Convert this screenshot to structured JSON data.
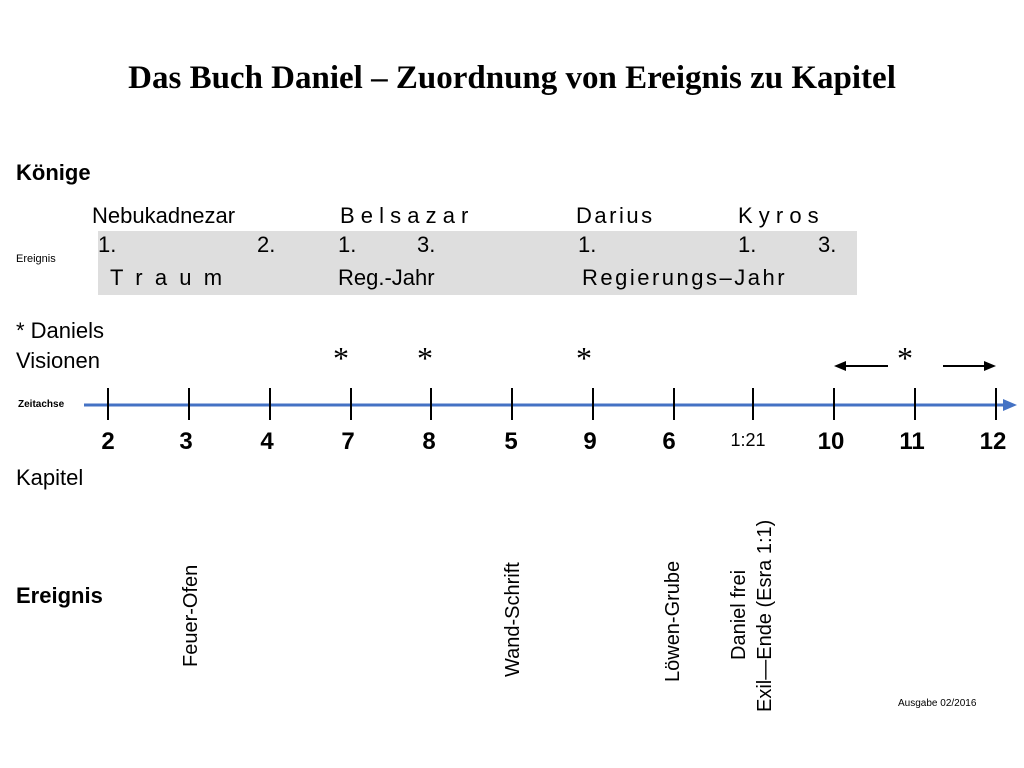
{
  "title": "Das Buch Daniel – Zuordnung von Ereignis zu Kapitel",
  "sections": {
    "koenige": "Könige",
    "ereignis_small": "Ereignis",
    "visions": "* Daniels",
    "visions2": "Visionen",
    "zeitachse": "Zeitachse",
    "kapitel": "Kapitel",
    "ereignis_bold": "Ereignis"
  },
  "kings": [
    {
      "name": "Nebukadnezar",
      "style": "normal"
    },
    {
      "name": "B e l s a z a r",
      "style": "spaced"
    },
    {
      "name": "Darius",
      "style": "normal"
    },
    {
      "name": "K y r o s",
      "style": "spaced"
    }
  ],
  "event_row1": [
    "1.",
    "2.",
    "1.",
    "3.",
    "1.",
    "1.",
    "3."
  ],
  "event_row2": [
    "T  r  a  u  m",
    "Reg.-Jahr",
    "Regierungs–Jahr"
  ],
  "stars": [
    "*",
    "*",
    "*",
    "*"
  ],
  "timeline": {
    "chapters": [
      "2",
      "3",
      "4",
      "7",
      "8",
      "5",
      "9",
      "6",
      "1:21",
      "10",
      "11",
      "12"
    ],
    "line_color": "#4472c4"
  },
  "events": [
    {
      "lines": [
        "Feuer-Ofen"
      ]
    },
    {
      "lines": [
        "Wand-Schrift"
      ]
    },
    {
      "lines": [
        "Löwen-Grube"
      ]
    },
    {
      "lines": [
        "Daniel frei",
        "Exil—Ende (Esra 1:1)"
      ]
    }
  ],
  "footer": "Ausgabe 02/2016"
}
